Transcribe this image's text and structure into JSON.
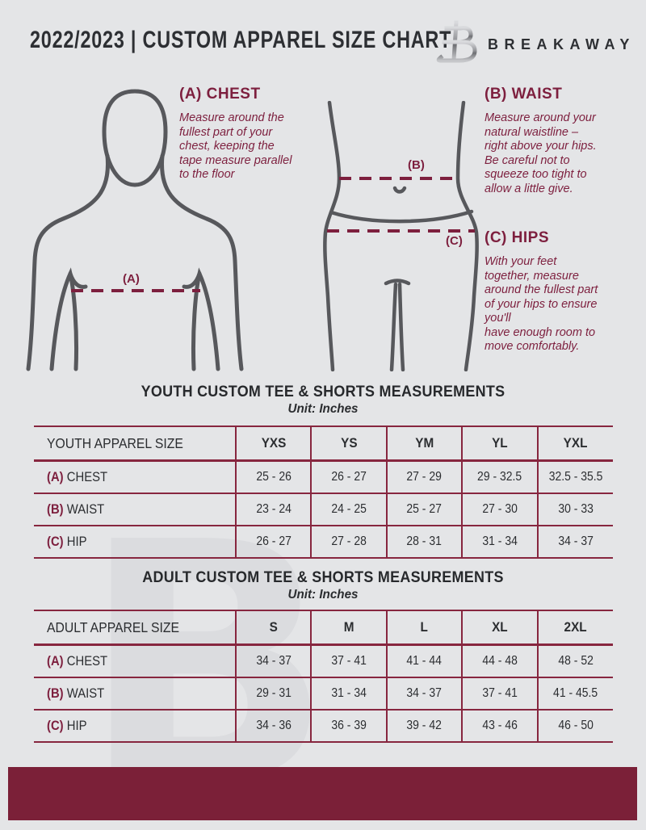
{
  "colors": {
    "background": "#e4e5e7",
    "accent_maroon": "#7d1f3e",
    "table_line": "#87263f",
    "footer_bar": "#7b2038",
    "figure_gray": "#57585c",
    "text_dark": "#2b2d30",
    "watermark_gray": "#dbdcdf"
  },
  "header": {
    "title": "2022/2023  |  CUSTOM APPAREL SIZE CHART",
    "brand": "BREAKAWAY"
  },
  "watermark": "B",
  "guide": {
    "chest": {
      "heading": "(A) CHEST",
      "marker": "(A)",
      "body": "Measure around the\nfullest part of your\nchest, keeping the\ntape measure parallel\nto the floor"
    },
    "waist": {
      "heading": "(B) WAIST",
      "marker": "(B)",
      "body": "Measure around your\nnatural waistline –\nright above your hips.\nBe careful not to\nsqueeze too tight to\nallow a little give."
    },
    "hips": {
      "heading": "(C) HIPS",
      "marker": "(C)",
      "body": "With your feet\ntogether, measure\naround the fullest part\nof your hips to ensure\nyou'll\nhave enough room to\nmove comfortably."
    }
  },
  "tables": [
    {
      "title": "YOUTH CUSTOM TEE & SHORTS MEASUREMENTS",
      "unit": "Unit: Inches",
      "size_label": "YOUTH APPAREL SIZE",
      "sizes": [
        "YXS",
        "YS",
        "YM",
        "YL",
        "YXL"
      ],
      "rows": [
        {
          "prefix": "(A)",
          "label": "CHEST",
          "values": [
            "25 - 26",
            "26 - 27",
            "27 - 29",
            "29 - 32.5",
            "32.5 - 35.5"
          ]
        },
        {
          "prefix": "(B)",
          "label": "WAIST",
          "values": [
            "23 - 24",
            "24 - 25",
            "25 - 27",
            "27 - 30",
            "30 - 33"
          ]
        },
        {
          "prefix": "(C)",
          "label": "HIP",
          "values": [
            "26 - 27",
            "27 - 28",
            "28 - 31",
            "31 - 34",
            "34 - 37"
          ]
        }
      ]
    },
    {
      "title": "ADULT CUSTOM TEE & SHORTS MEASUREMENTS",
      "unit": "Unit: Inches",
      "size_label": "ADULT APPAREL SIZE",
      "sizes": [
        "S",
        "M",
        "L",
        "XL",
        "2XL"
      ],
      "rows": [
        {
          "prefix": "(A)",
          "label": "CHEST",
          "values": [
            "34 - 37",
            "37 - 41",
            "41 - 44",
            "44 - 48",
            "48 - 52"
          ]
        },
        {
          "prefix": "(B)",
          "label": "WAIST",
          "values": [
            "29 - 31",
            "31 - 34",
            "34 - 37",
            "37 - 41",
            "41 - 45.5"
          ]
        },
        {
          "prefix": "(C)",
          "label": "HIP",
          "values": [
            "34 - 36",
            "36 - 39",
            "39 - 42",
            "43 - 46",
            "46 - 50"
          ]
        }
      ]
    }
  ]
}
